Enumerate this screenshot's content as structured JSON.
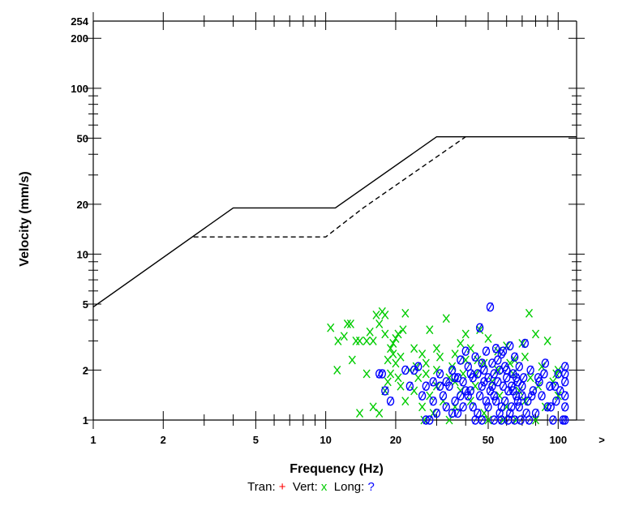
{
  "chart_data": {
    "type": "scatter",
    "xlabel": "Frequency (Hz)",
    "ylabel": "Velocity (mm/s)",
    "x_scale": "log",
    "y_scale": "log",
    "xlim": [
      1,
      120
    ],
    "ylim": [
      1,
      254
    ],
    "x_ticks": [
      1,
      2,
      5,
      10,
      20,
      50,
      100
    ],
    "y_ticks": [
      1,
      2,
      5,
      10,
      20,
      50,
      100,
      200,
      254
    ],
    "x_overflow_label": ">",
    "legend": {
      "position": "bottom",
      "entries": [
        {
          "label": "Tran:",
          "symbol": "+",
          "color": "#ff0000"
        },
        {
          "label": "Vert:",
          "symbol": "x",
          "color": "#00cc00"
        },
        {
          "label": "Long:",
          "symbol": "?",
          "color": "#0000ff"
        }
      ]
    },
    "limit_curves": [
      {
        "name": "",
        "style": "solid",
        "points": [
          [
            1,
            4.8
          ],
          [
            4,
            19
          ],
          [
            11,
            19
          ],
          [
            30,
            51
          ],
          [
            120,
            51
          ]
        ]
      },
      {
        "name": "",
        "style": "dashed",
        "points": [
          [
            2.7,
            12.7
          ],
          [
            10,
            12.7
          ],
          [
            14.5,
            19
          ],
          [
            40,
            51
          ]
        ]
      }
    ],
    "series": [
      {
        "name": "Vert",
        "marker": "x",
        "color": "#00cc00",
        "points": [
          [
            10.5,
            3.6
          ],
          [
            11.3,
            3.0
          ],
          [
            12.0,
            3.2
          ],
          [
            12.4,
            3.8
          ],
          [
            12.8,
            3.8
          ],
          [
            13.0,
            2.3
          ],
          [
            13.5,
            3.0
          ],
          [
            14.0,
            3.0
          ],
          [
            11.2,
            2.0
          ],
          [
            15.0,
            3.0
          ],
          [
            15.5,
            3.4
          ],
          [
            16.0,
            3.0
          ],
          [
            16.5,
            4.3
          ],
          [
            17.0,
            3.8
          ],
          [
            17.5,
            4.5
          ],
          [
            18.0,
            3.3
          ],
          [
            18.5,
            2.3
          ],
          [
            19.0,
            2.7
          ],
          [
            19.5,
            2.9
          ],
          [
            20.0,
            3.1
          ],
          [
            20.5,
            3.3
          ],
          [
            21.0,
            2.4
          ],
          [
            21.5,
            3.5
          ],
          [
            22.0,
            4.4
          ],
          [
            18.0,
            4.3
          ],
          [
            19.5,
            2.5
          ],
          [
            20.0,
            2.2
          ],
          [
            24.0,
            2.7
          ],
          [
            26.0,
            2.5
          ],
          [
            28.0,
            3.5
          ],
          [
            30.0,
            2.7
          ],
          [
            33.0,
            4.1
          ],
          [
            36.0,
            2.5
          ],
          [
            38.0,
            2.9
          ],
          [
            40.0,
            3.3
          ],
          [
            42.0,
            2.7
          ],
          [
            46.0,
            3.5
          ],
          [
            50.0,
            3.1
          ],
          [
            55.0,
            2.6
          ],
          [
            60.0,
            2.8
          ],
          [
            65.0,
            2.3
          ],
          [
            70.0,
            2.9
          ],
          [
            75.0,
            4.4
          ],
          [
            80.0,
            3.3
          ],
          [
            90.0,
            3.0
          ],
          [
            100.0,
            2.0
          ],
          [
            16.0,
            1.2
          ],
          [
            17.0,
            1.1
          ],
          [
            18.0,
            1.5
          ],
          [
            18.5,
            1.7
          ],
          [
            19.0,
            1.9
          ],
          [
            22.0,
            1.3
          ],
          [
            24.0,
            1.5
          ],
          [
            25.0,
            1.8
          ],
          [
            26.0,
            1.2
          ],
          [
            27.0,
            1.9
          ],
          [
            28.0,
            1.4
          ],
          [
            29.0,
            1.1
          ],
          [
            30.0,
            1.6
          ],
          [
            32.0,
            1.3
          ],
          [
            34.0,
            1.8
          ],
          [
            36.0,
            1.2
          ],
          [
            38.0,
            1.5
          ],
          [
            42.0,
            1.3
          ],
          [
            44.0,
            1.9
          ],
          [
            48.0,
            1.1
          ],
          [
            52.0,
            1.7
          ],
          [
            56.0,
            1.4
          ],
          [
            60.0,
            1.2
          ],
          [
            64.0,
            1.9
          ],
          [
            68.0,
            1.5
          ],
          [
            72.0,
            1.3
          ],
          [
            76.0,
            1.8
          ],
          [
            82.0,
            1.6
          ],
          [
            88.0,
            1.2
          ],
          [
            95.0,
            1.7
          ],
          [
            100.0,
            1.4
          ],
          [
            23.0,
            2.0
          ],
          [
            27.0,
            2.2
          ],
          [
            31.0,
            2.4
          ],
          [
            35.0,
            2.1
          ],
          [
            39.0,
            1.9
          ],
          [
            45.0,
            2.3
          ],
          [
            55.0,
            2.0
          ],
          [
            62.0,
            2.2
          ],
          [
            72.0,
            2.4
          ],
          [
            85.0,
            2.1
          ],
          [
            98.0,
            1.9
          ],
          [
            14.0,
            1.1
          ],
          [
            15.0,
            1.9
          ],
          [
            21.0,
            1.6
          ],
          [
            26.5,
            1.0
          ],
          [
            34.0,
            1.0
          ],
          [
            50.0,
            1.0
          ],
          [
            58.0,
            1.0
          ],
          [
            66.0,
            1.0
          ],
          [
            80.0,
            1.0
          ],
          [
            40.0,
            2.3
          ],
          [
            44.0,
            1.6
          ],
          [
            48.0,
            2.2
          ],
          [
            36.0,
            1.7
          ],
          [
            30.0,
            2.0
          ],
          [
            24.5,
            2.1
          ],
          [
            20.5,
            1.8
          ]
        ]
      },
      {
        "name": "Long",
        "marker": "o",
        "color": "#0000ff",
        "points": [
          [
            17.0,
            1.9
          ],
          [
            17.5,
            1.9
          ],
          [
            19.0,
            1.3
          ],
          [
            18.0,
            1.5
          ],
          [
            22.0,
            2.0
          ],
          [
            23.0,
            1.6
          ],
          [
            24.0,
            2.0
          ],
          [
            25.0,
            2.1
          ],
          [
            26.0,
            1.4
          ],
          [
            27.0,
            1.0
          ],
          [
            28.0,
            1.0
          ],
          [
            29.0,
            1.3
          ],
          [
            30.0,
            1.1
          ],
          [
            31.0,
            1.9
          ],
          [
            32.0,
            1.4
          ],
          [
            33.0,
            1.2
          ],
          [
            34.0,
            1.6
          ],
          [
            35.0,
            2.0
          ],
          [
            36.0,
            1.3
          ],
          [
            37.0,
            1.8
          ],
          [
            38.0,
            2.3
          ],
          [
            39.0,
            1.7
          ],
          [
            40.0,
            2.6
          ],
          [
            41.0,
            2.1
          ],
          [
            42.0,
            1.5
          ],
          [
            43.0,
            1.2
          ],
          [
            44.0,
            2.4
          ],
          [
            45.0,
            1.9
          ],
          [
            46.0,
            3.6
          ],
          [
            47.0,
            1.6
          ],
          [
            48.0,
            2.0
          ],
          [
            49.0,
            1.3
          ],
          [
            50.0,
            1.8
          ],
          [
            51.0,
            4.8
          ],
          [
            52.0,
            2.2
          ],
          [
            53.0,
            1.4
          ],
          [
            54.0,
            2.7
          ],
          [
            55.0,
            1.7
          ],
          [
            56.0,
            1.1
          ],
          [
            57.0,
            2.5
          ],
          [
            58.0,
            1.6
          ],
          [
            59.0,
            1.3
          ],
          [
            60.0,
            2.0
          ],
          [
            61.0,
            1.5
          ],
          [
            62.0,
            2.8
          ],
          [
            63.0,
            1.2
          ],
          [
            64.0,
            1.9
          ],
          [
            65.0,
            2.4
          ],
          [
            66.0,
            1.4
          ],
          [
            67.0,
            1.7
          ],
          [
            68.0,
            2.1
          ],
          [
            69.0,
            1.0
          ],
          [
            70.0,
            1.6
          ],
          [
            72.0,
            2.9
          ],
          [
            74.0,
            1.3
          ],
          [
            76.0,
            2.0
          ],
          [
            78.0,
            1.5
          ],
          [
            80.0,
            1.1
          ],
          [
            82.0,
            1.8
          ],
          [
            85.0,
            1.4
          ],
          [
            88.0,
            2.2
          ],
          [
            90.0,
            1.2
          ],
          [
            92.0,
            1.6
          ],
          [
            95.0,
            1.0
          ],
          [
            98.0,
            1.3
          ],
          [
            100.0,
            1.9
          ],
          [
            102.0,
            1.5
          ],
          [
            105.0,
            1.0
          ],
          [
            107.0,
            1.2
          ],
          [
            107.0,
            1.4
          ],
          [
            107.0,
            1.7
          ],
          [
            107.0,
            1.9
          ],
          [
            107.0,
            2.1
          ],
          [
            107.0,
            1.0
          ],
          [
            44.0,
            1.0
          ],
          [
            47.0,
            1.0
          ],
          [
            53.0,
            1.0
          ],
          [
            57.0,
            1.0
          ],
          [
            61.0,
            1.0
          ],
          [
            65.0,
            1.0
          ],
          [
            75.0,
            1.0
          ],
          [
            33.0,
            1.7
          ],
          [
            37.0,
            1.1
          ],
          [
            41.0,
            1.4
          ],
          [
            43.0,
            1.8
          ],
          [
            45.0,
            1.1
          ],
          [
            47.0,
            2.2
          ],
          [
            49.0,
            2.6
          ],
          [
            51.0,
            1.5
          ],
          [
            53.0,
            1.9
          ],
          [
            55.0,
            2.3
          ],
          [
            57.0,
            1.2
          ],
          [
            59.0,
            2.1
          ],
          [
            63.0,
            1.6
          ],
          [
            67.0,
            1.3
          ],
          [
            71.0,
            1.8
          ],
          [
            73.0,
            1.1
          ],
          [
            77.0,
            1.4
          ],
          [
            83.0,
            1.7
          ],
          [
            87.0,
            1.9
          ],
          [
            93.0,
            1.2
          ],
          [
            97.0,
            1.6
          ],
          [
            46.0,
            1.4
          ],
          [
            48.0,
            1.7
          ],
          [
            50.0,
            1.2
          ],
          [
            52.0,
            1.6
          ],
          [
            54.0,
            1.3
          ],
          [
            56.0,
            2.0
          ],
          [
            58.0,
            2.6
          ],
          [
            60.0,
            1.8
          ],
          [
            62.0,
            1.1
          ],
          [
            64.0,
            1.5
          ],
          [
            66.0,
            1.8
          ],
          [
            68.0,
            1.2
          ],
          [
            70.0,
            1.4
          ],
          [
            39.0,
            1.2
          ],
          [
            40.0,
            1.5
          ],
          [
            42.0,
            1.9
          ],
          [
            36.0,
            1.8
          ],
          [
            38.0,
            1.4
          ],
          [
            35.0,
            1.1
          ],
          [
            31.0,
            1.6
          ],
          [
            29.0,
            1.7
          ],
          [
            27.0,
            1.6
          ]
        ]
      }
    ]
  }
}
